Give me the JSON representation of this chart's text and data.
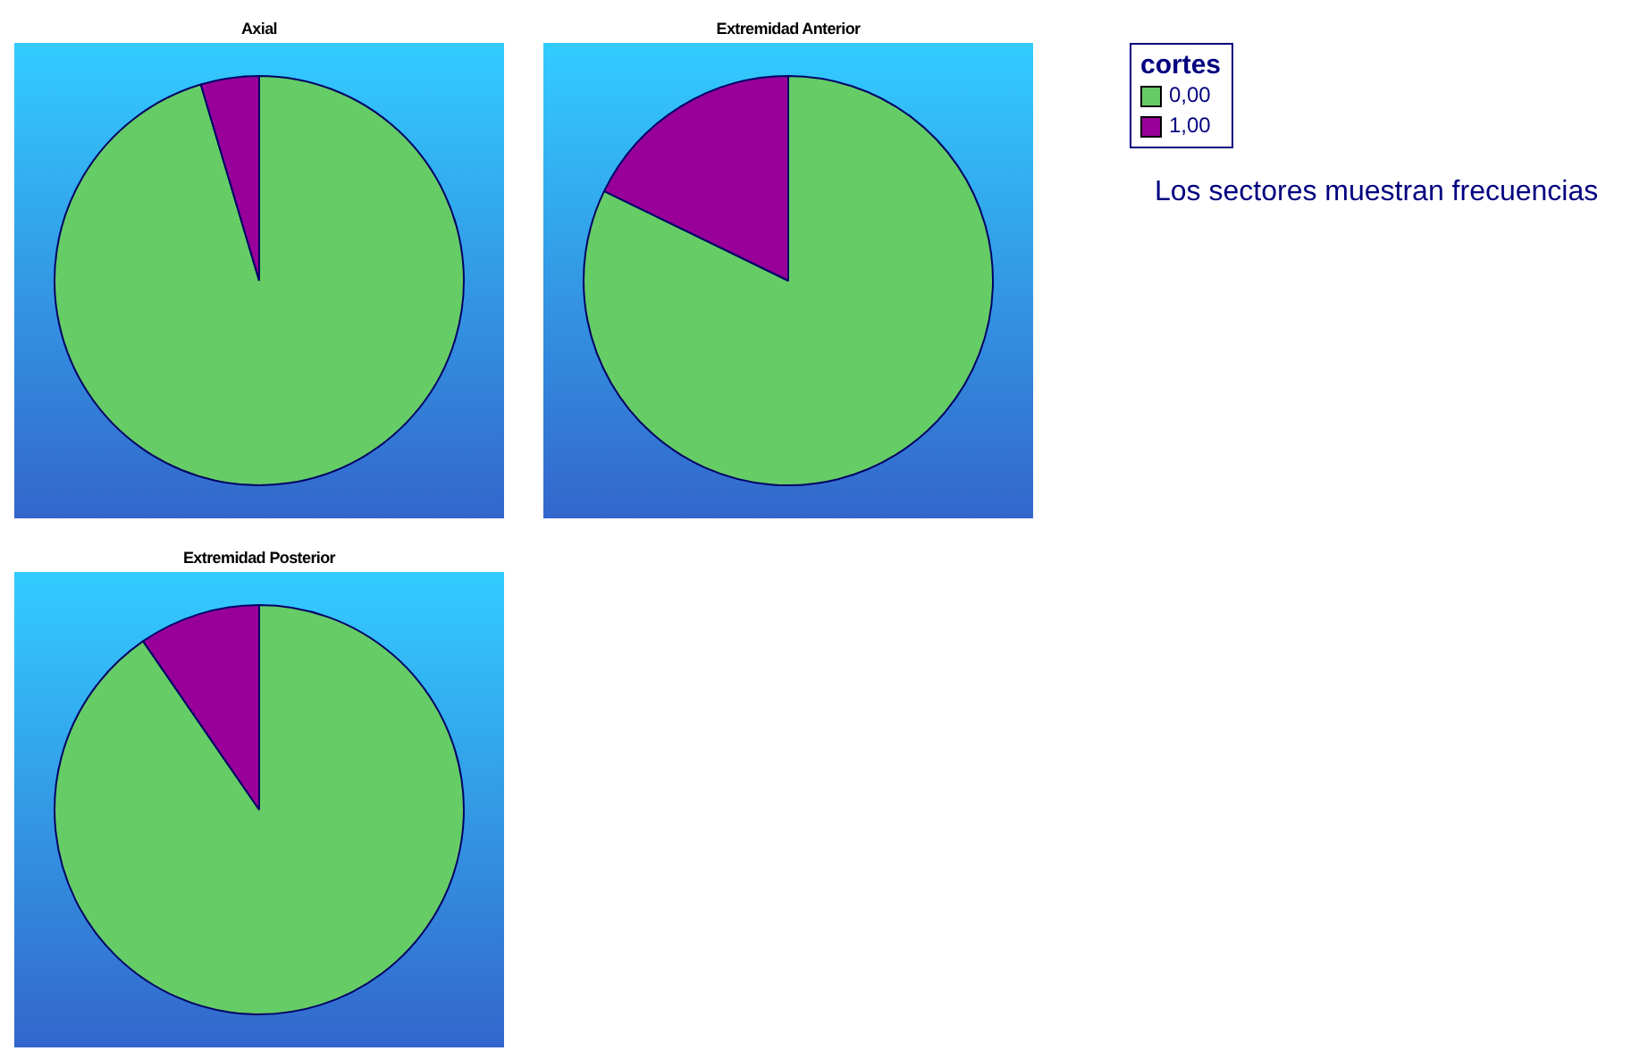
{
  "chart_data": [
    {
      "type": "pie",
      "title": "Axial",
      "categories": [
        "0,00",
        "1,00"
      ],
      "values": [
        95.4,
        4.6
      ],
      "colors": [
        "#66cc66",
        "#990099"
      ],
      "legend": "right",
      "legend_title": "cortes",
      "annotations": [
        "Los sectores muestran frecuencias"
      ]
    },
    {
      "type": "pie",
      "title": "Extremidad Anterior",
      "values": [
        82.2,
        17.8
      ],
      "colors": [
        "#66cc66",
        "#990099"
      ]
    },
    {
      "type": "pie",
      "title": "Extremidad Posterior",
      "values": [
        90.4,
        9.6
      ],
      "colors": [
        "#66cc66",
        "#990099"
      ]
    }
  ]
}
